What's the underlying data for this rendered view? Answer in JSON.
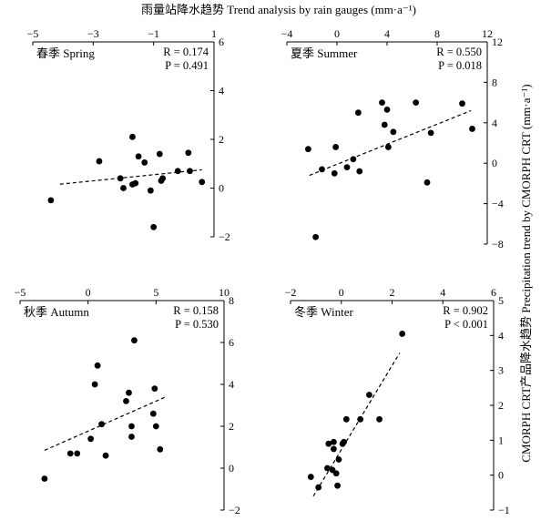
{
  "figure": {
    "title": "雨量站降水趋势 Trend analysis by rain gauges (mm·a⁻¹)",
    "ylabel": "CMORPH CRT产品降水趋势 Precipitation trend by CMORPH CRT (mm·a⁻¹)"
  },
  "chart_data": [
    {
      "type": "scatter",
      "panel": "spring",
      "label": "春季 Spring",
      "R": "R = 0.174",
      "P": "P = 0.491",
      "xlim": [
        -5,
        1
      ],
      "ylim": [
        -2,
        6
      ],
      "x_ticks": [
        "−5",
        "−3",
        "−1",
        "1"
      ],
      "y_ticks": [
        "−2",
        "0",
        "2",
        "4",
        "6"
      ],
      "x_ticks_position": "top",
      "y_ticks_position": "right",
      "trend": [
        [
          -4.1,
          0.16
        ],
        [
          0.6,
          0.75
        ]
      ],
      "points": [
        [
          -4.4,
          -0.5
        ],
        [
          -2.8,
          1.1
        ],
        [
          -2.1,
          0.4
        ],
        [
          -2.0,
          0.0
        ],
        [
          -1.7,
          2.1
        ],
        [
          -1.6,
          0.2
        ],
        [
          -1.7,
          0.15
        ],
        [
          -1.5,
          1.3
        ],
        [
          -1.3,
          1.05
        ],
        [
          -1.1,
          -0.1
        ],
        [
          -1.0,
          -1.6
        ],
        [
          -0.8,
          1.4
        ],
        [
          -0.7,
          0.4
        ],
        [
          -0.75,
          0.3
        ],
        [
          -0.2,
          0.7
        ],
        [
          0.15,
          1.45
        ],
        [
          0.2,
          0.7
        ],
        [
          0.6,
          0.25
        ]
      ]
    },
    {
      "type": "scatter",
      "panel": "summer",
      "label": "夏季 Summer",
      "R": "R = 0.550",
      "P": "P = 0.018",
      "xlim": [
        -4,
        12
      ],
      "ylim": [
        -8,
        12
      ],
      "x_ticks": [
        "−4",
        "0",
        "4",
        "8",
        "12"
      ],
      "y_ticks": [
        "−8",
        "−4",
        "0",
        "4",
        "8",
        "12"
      ],
      "x_ticks_position": "top",
      "y_ticks_position": "right",
      "trend": [
        [
          -2.2,
          -1.2
        ],
        [
          10.7,
          5.2
        ]
      ],
      "points": [
        [
          -2.3,
          1.4
        ],
        [
          -1.7,
          -7.3
        ],
        [
          -1.2,
          -0.6
        ],
        [
          -0.1,
          1.6
        ],
        [
          -0.2,
          -1.0
        ],
        [
          0.8,
          -0.4
        ],
        [
          1.3,
          0.4
        ],
        [
          1.7,
          5.0
        ],
        [
          1.8,
          -0.8
        ],
        [
          3.6,
          6.0
        ],
        [
          3.8,
          3.8
        ],
        [
          4.0,
          5.3
        ],
        [
          4.5,
          3.1
        ],
        [
          4.1,
          1.6
        ],
        [
          6.3,
          6.0
        ],
        [
          7.5,
          3.0
        ],
        [
          7.2,
          -1.9
        ],
        [
          10.0,
          5.9
        ],
        [
          10.8,
          3.4
        ]
      ]
    },
    {
      "type": "scatter",
      "panel": "autumn",
      "label": "秋季 Autumn",
      "R": "R = 0.158",
      "P": "P = 0.530",
      "xlim": [
        -5,
        10
      ],
      "ylim": [
        -2,
        8
      ],
      "x_ticks": [
        "−5",
        "0",
        "5",
        "10"
      ],
      "y_ticks": [
        "−2",
        "0",
        "2",
        "4",
        "6",
        "8"
      ],
      "x_ticks_position": "top",
      "y_ticks_position": "right",
      "trend": [
        [
          -3.2,
          0.85
        ],
        [
          5.7,
          3.4
        ]
      ],
      "points": [
        [
          -3.2,
          -0.5
        ],
        [
          -1.3,
          0.7
        ],
        [
          -0.8,
          0.7
        ],
        [
          0.2,
          1.4
        ],
        [
          0.5,
          4.0
        ],
        [
          0.7,
          4.9
        ],
        [
          1.0,
          2.1
        ],
        [
          1.3,
          0.6
        ],
        [
          2.8,
          3.2
        ],
        [
          3.0,
          3.6
        ],
        [
          3.2,
          1.5
        ],
        [
          3.2,
          2.0
        ],
        [
          3.4,
          6.1
        ],
        [
          4.8,
          2.6
        ],
        [
          4.9,
          3.8
        ],
        [
          5.0,
          2.0
        ],
        [
          5.3,
          0.9
        ]
      ]
    },
    {
      "type": "scatter",
      "panel": "winter",
      "label": "冬季 Winter",
      "R": "R = 0.902",
      "P": "P < 0.001",
      "xlim": [
        -2,
        6
      ],
      "ylim": [
        -1,
        5
      ],
      "x_ticks": [
        "−2",
        "0",
        "2",
        "4",
        "6"
      ],
      "y_ticks": [
        "−1",
        "0",
        "1",
        "2",
        "3",
        "4",
        "5"
      ],
      "x_ticks_position": "top",
      "y_ticks_position": "right",
      "trend": [
        [
          -1.1,
          -0.6
        ],
        [
          2.3,
          3.5
        ]
      ],
      "points": [
        [
          -1.2,
          -0.05
        ],
        [
          -0.9,
          -0.35
        ],
        [
          -0.55,
          0.2
        ],
        [
          -0.5,
          0.9
        ],
        [
          -0.3,
          0.95
        ],
        [
          -0.3,
          0.75
        ],
        [
          -0.2,
          0.05
        ],
        [
          -0.35,
          0.15
        ],
        [
          -0.15,
          -0.3
        ],
        [
          -0.1,
          0.45
        ],
        [
          0.05,
          0.9
        ],
        [
          0.1,
          0.95
        ],
        [
          0.2,
          1.6
        ],
        [
          0.75,
          1.6
        ],
        [
          1.1,
          2.3
        ],
        [
          1.5,
          1.6
        ],
        [
          2.4,
          4.05
        ]
      ]
    }
  ]
}
